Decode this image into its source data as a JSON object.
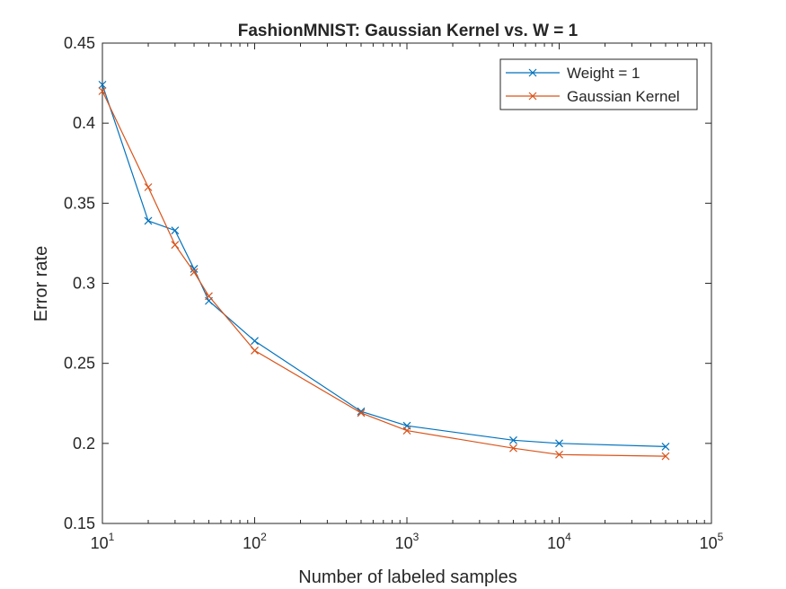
{
  "chart_data": {
    "type": "line",
    "title": "FashionMNIST: Gaussian Kernel vs. W = 1",
    "xlabel": "Number of labeled samples",
    "ylabel": "Error rate",
    "xscale": "log",
    "xlim": [
      10,
      100000
    ],
    "ylim": [
      0.15,
      0.45
    ],
    "x": [
      10,
      20,
      30,
      40,
      50,
      100,
      500,
      1000,
      5000,
      10000,
      50000
    ],
    "x_ticks": [
      {
        "value": 10,
        "base": "10",
        "exp": "1"
      },
      {
        "value": 100,
        "base": "10",
        "exp": "2"
      },
      {
        "value": 1000,
        "base": "10",
        "exp": "3"
      },
      {
        "value": 10000,
        "base": "10",
        "exp": "4"
      },
      {
        "value": 100000,
        "base": "10",
        "exp": "5"
      }
    ],
    "y_ticks": [
      {
        "value": 0.15,
        "label": "0.15"
      },
      {
        "value": 0.2,
        "label": "0.2"
      },
      {
        "value": 0.25,
        "label": "0.25"
      },
      {
        "value": 0.3,
        "label": "0.3"
      },
      {
        "value": 0.35,
        "label": "0.35"
      },
      {
        "value": 0.4,
        "label": "0.4"
      },
      {
        "value": 0.45,
        "label": "0.45"
      }
    ],
    "series": [
      {
        "name": "Weight = 1",
        "color": "#0072bd",
        "marker": "x",
        "values": [
          0.424,
          0.339,
          0.333,
          0.309,
          0.289,
          0.264,
          0.22,
          0.211,
          0.202,
          0.2,
          0.198
        ]
      },
      {
        "name": "Gaussian Kernel",
        "color": "#d95319",
        "marker": "x",
        "values": [
          0.42,
          0.36,
          0.324,
          0.307,
          0.292,
          0.258,
          0.219,
          0.208,
          0.197,
          0.193,
          0.192
        ]
      }
    ],
    "legend_position": "top-right",
    "grid": false
  }
}
